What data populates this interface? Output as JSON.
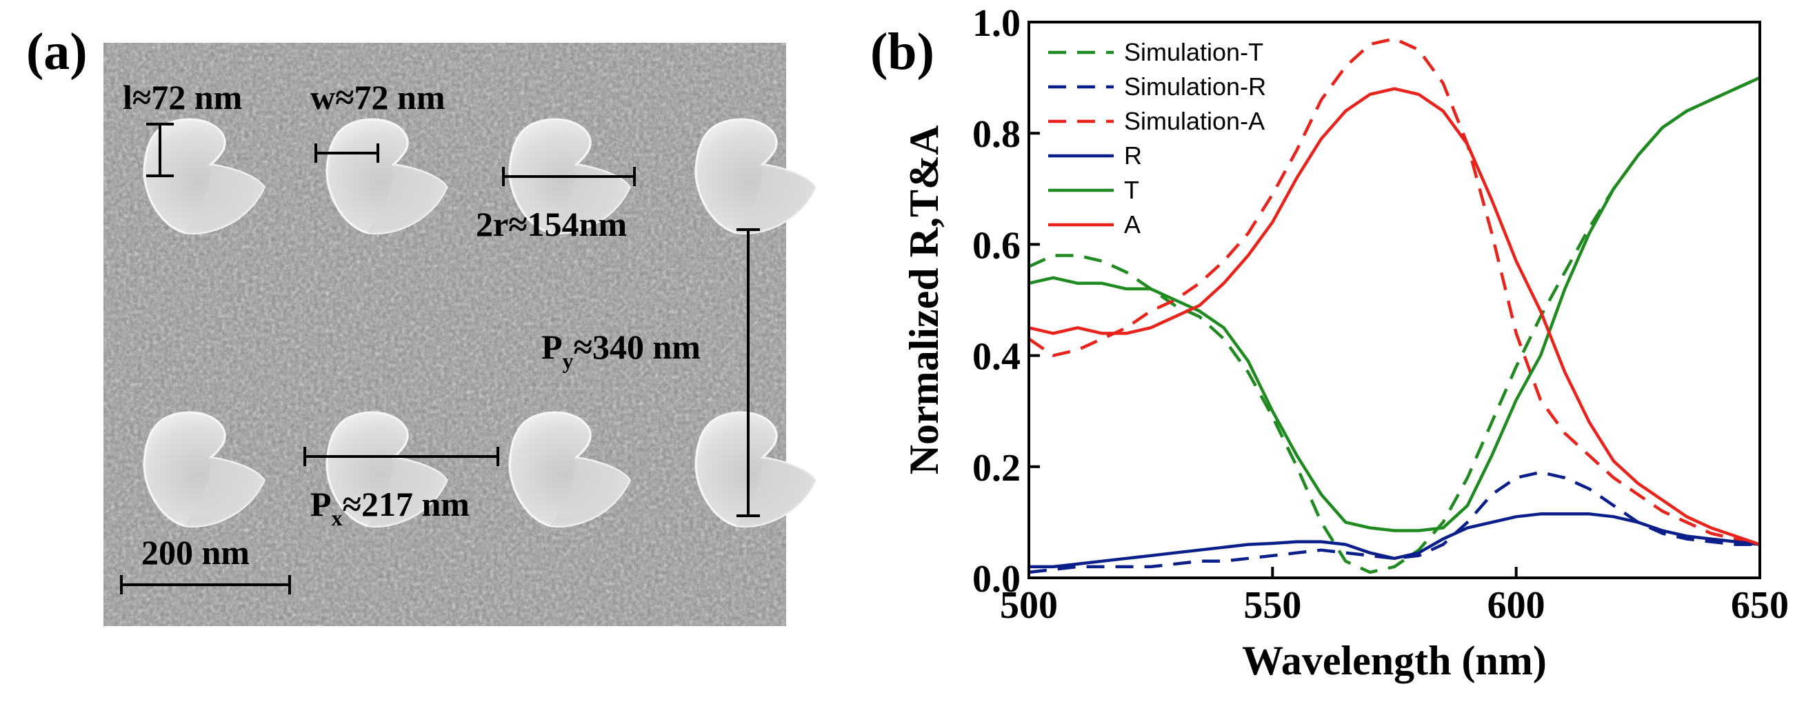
{
  "panel_a": {
    "label": "(a)",
    "annotations": {
      "length": "l≈72 nm",
      "width": "w≈72 nm",
      "diameter": "2r≈154nm",
      "period_y_prefix": "P",
      "period_y_sub": "y",
      "period_y_value": "≈340 nm",
      "period_x_prefix": "P",
      "period_x_sub": "x",
      "period_x_value": "≈217 nm",
      "scale_bar": "200 nm"
    }
  },
  "panel_b": {
    "label": "(b)"
  },
  "chart_data": {
    "type": "line",
    "xlabel": "Wavelength (nm)",
    "ylabel": "Normalized R,T&A",
    "xlim": [
      500,
      650
    ],
    "ylim": [
      0,
      1.0
    ],
    "xticks": [
      "500",
      "550",
      "600",
      "650"
    ],
    "yticks": [
      "0.0",
      "0.2",
      "0.4",
      "0.6",
      "0.8",
      "1.0"
    ],
    "legend_position": "top-left",
    "series": [
      {
        "name": "Simulation-T",
        "style": "dashed",
        "color": "#1f8a1f",
        "x": [
          500,
          505,
          510,
          515,
          520,
          525,
          530,
          535,
          540,
          545,
          550,
          555,
          560,
          565,
          570,
          575,
          580,
          585,
          590,
          595,
          600,
          605,
          610,
          615,
          620,
          625,
          630,
          635,
          640,
          645,
          650
        ],
        "y": [
          0.56,
          0.58,
          0.58,
          0.57,
          0.55,
          0.52,
          0.49,
          0.47,
          0.43,
          0.37,
          0.29,
          0.2,
          0.1,
          0.03,
          0.01,
          0.02,
          0.05,
          0.1,
          0.18,
          0.28,
          0.38,
          0.47,
          0.55,
          0.63,
          0.7,
          0.76,
          0.81,
          0.84,
          0.86,
          0.88,
          0.9
        ]
      },
      {
        "name": "Simulation-R",
        "style": "dashed",
        "color": "#0b1f8a",
        "x": [
          500,
          505,
          510,
          515,
          520,
          525,
          530,
          535,
          540,
          545,
          550,
          555,
          560,
          565,
          570,
          575,
          580,
          585,
          590,
          595,
          600,
          605,
          610,
          615,
          620,
          625,
          630,
          635,
          640,
          645,
          650
        ],
        "y": [
          0.01,
          0.015,
          0.02,
          0.02,
          0.02,
          0.02,
          0.025,
          0.03,
          0.03,
          0.035,
          0.04,
          0.045,
          0.05,
          0.045,
          0.04,
          0.035,
          0.04,
          0.06,
          0.1,
          0.15,
          0.18,
          0.19,
          0.18,
          0.16,
          0.13,
          0.1,
          0.08,
          0.07,
          0.065,
          0.06,
          0.06
        ]
      },
      {
        "name": "Simulation-A",
        "style": "dashed",
        "color": "#e8231c",
        "x": [
          500,
          505,
          510,
          515,
          520,
          525,
          530,
          535,
          540,
          545,
          550,
          555,
          560,
          565,
          570,
          575,
          580,
          585,
          590,
          595,
          600,
          605,
          610,
          615,
          620,
          625,
          630,
          635,
          640,
          645,
          650
        ],
        "y": [
          0.43,
          0.4,
          0.41,
          0.43,
          0.45,
          0.48,
          0.5,
          0.53,
          0.57,
          0.62,
          0.69,
          0.77,
          0.86,
          0.92,
          0.96,
          0.97,
          0.95,
          0.89,
          0.78,
          0.62,
          0.44,
          0.32,
          0.26,
          0.22,
          0.18,
          0.15,
          0.12,
          0.1,
          0.08,
          0.07,
          0.06
        ]
      },
      {
        "name": "R",
        "style": "solid",
        "color": "#0b1f8a",
        "x": [
          500,
          505,
          510,
          515,
          520,
          525,
          530,
          535,
          540,
          545,
          550,
          555,
          560,
          565,
          570,
          575,
          580,
          585,
          590,
          595,
          600,
          605,
          610,
          615,
          620,
          625,
          630,
          635,
          640,
          645,
          650
        ],
        "y": [
          0.02,
          0.02,
          0.025,
          0.03,
          0.035,
          0.04,
          0.045,
          0.05,
          0.055,
          0.06,
          0.062,
          0.065,
          0.065,
          0.06,
          0.045,
          0.035,
          0.045,
          0.07,
          0.09,
          0.1,
          0.11,
          0.115,
          0.115,
          0.115,
          0.11,
          0.1,
          0.085,
          0.075,
          0.07,
          0.065,
          0.06
        ]
      },
      {
        "name": "T",
        "style": "solid",
        "color": "#1f8a1f",
        "x": [
          500,
          505,
          510,
          515,
          520,
          525,
          530,
          535,
          540,
          545,
          550,
          555,
          560,
          565,
          570,
          575,
          580,
          585,
          590,
          595,
          600,
          605,
          610,
          615,
          620,
          625,
          630,
          635,
          640,
          645,
          650
        ],
        "y": [
          0.53,
          0.54,
          0.53,
          0.53,
          0.52,
          0.52,
          0.5,
          0.48,
          0.45,
          0.39,
          0.3,
          0.22,
          0.15,
          0.1,
          0.09,
          0.085,
          0.085,
          0.09,
          0.13,
          0.22,
          0.32,
          0.4,
          0.52,
          0.62,
          0.7,
          0.76,
          0.81,
          0.84,
          0.86,
          0.88,
          0.9
        ]
      },
      {
        "name": "A",
        "style": "solid",
        "color": "#e8231c",
        "x": [
          500,
          505,
          510,
          515,
          520,
          525,
          530,
          535,
          540,
          545,
          550,
          555,
          560,
          565,
          570,
          575,
          580,
          585,
          590,
          595,
          600,
          605,
          610,
          615,
          620,
          625,
          630,
          635,
          640,
          645,
          650
        ],
        "y": [
          0.45,
          0.44,
          0.45,
          0.44,
          0.44,
          0.45,
          0.47,
          0.49,
          0.53,
          0.58,
          0.64,
          0.72,
          0.79,
          0.84,
          0.87,
          0.88,
          0.87,
          0.84,
          0.78,
          0.68,
          0.57,
          0.48,
          0.37,
          0.28,
          0.21,
          0.17,
          0.14,
          0.11,
          0.09,
          0.075,
          0.06
        ]
      }
    ]
  }
}
